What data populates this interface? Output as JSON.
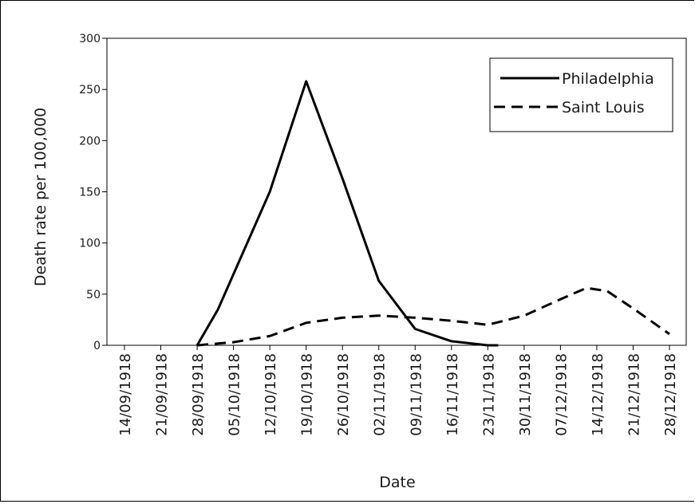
{
  "chart_data": {
    "type": "line",
    "xlabel": "Date",
    "ylabel": "Death rate per 100,000",
    "ylim": [
      0,
      300
    ],
    "yticks": [
      0,
      50,
      100,
      150,
      200,
      250,
      300
    ],
    "xticks": [
      "14/09/1918",
      "21/09/1918",
      "28/09/1918",
      "05/10/1918",
      "12/10/1918",
      "19/10/1918",
      "26/10/1918",
      "02/11/1918",
      "09/11/1918",
      "16/11/1918",
      "23/11/1918",
      "30/11/1918",
      "07/12/1918",
      "14/12/1918",
      "21/12/1918",
      "28/12/1918"
    ],
    "legend_position": "top-right",
    "series": [
      {
        "name": "Philadelphia",
        "style": "solid",
        "color": "#000000",
        "points": [
          [
            "28/09/1918",
            0
          ],
          [
            "02/10/1918",
            35
          ],
          [
            "12/10/1918",
            150
          ],
          [
            "19/10/1918",
            258
          ],
          [
            "26/10/1918",
            163
          ],
          [
            "02/11/1918",
            63
          ],
          [
            "09/11/1918",
            16
          ],
          [
            "16/11/1918",
            4
          ],
          [
            "23/11/1918",
            0
          ],
          [
            "25/11/1918",
            0
          ]
        ]
      },
      {
        "name": "Saint Louis",
        "style": "dashed",
        "color": "#000000",
        "points": [
          [
            "28/09/1918",
            0
          ],
          [
            "05/10/1918",
            3
          ],
          [
            "12/10/1918",
            9
          ],
          [
            "19/10/1918",
            22
          ],
          [
            "26/10/1918",
            27
          ],
          [
            "02/11/1918",
            29
          ],
          [
            "09/11/1918",
            27
          ],
          [
            "16/11/1918",
            24
          ],
          [
            "23/11/1918",
            20
          ],
          [
            "30/11/1918",
            29
          ],
          [
            "07/12/1918",
            45
          ],
          [
            "12/12/1918",
            56
          ],
          [
            "16/12/1918",
            53
          ],
          [
            "21/12/1918",
            36
          ],
          [
            "28/12/1918",
            11
          ]
        ]
      }
    ]
  }
}
